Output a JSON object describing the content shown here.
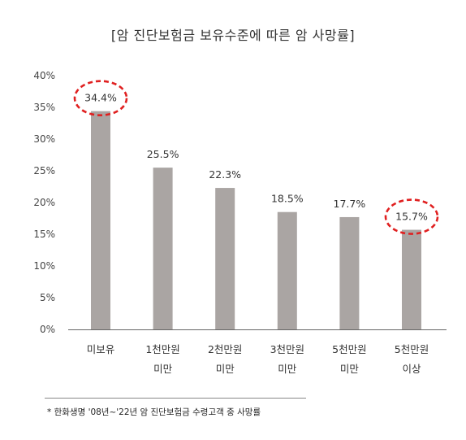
{
  "title": "[암 진단보험금 보유수준에 따른 암 사망률]",
  "footnote": "* 한화생명 '08년~'22년 암 진단보험금 수령고객 중 사망률",
  "colors": {
    "bar": "#aaa5a3",
    "highlight": "#e02020",
    "text": "#333333"
  },
  "chart_data": {
    "type": "bar",
    "categories": [
      [
        "미보유"
      ],
      [
        "1천만원",
        "미만"
      ],
      [
        "2천만원",
        "미만"
      ],
      [
        "3천만원",
        "미만"
      ],
      [
        "5천만원",
        "미만"
      ],
      [
        "5천만원",
        "이상"
      ]
    ],
    "values": [
      34.4,
      25.5,
      22.3,
      18.5,
      17.7,
      15.7
    ],
    "value_labels": [
      "34.4%",
      "25.5%",
      "22.3%",
      "18.5%",
      "17.7%",
      "15.7%"
    ],
    "highlighted": [
      0,
      5
    ],
    "ylim": [
      0,
      40
    ],
    "yticks": [
      "0%",
      "5%",
      "10%",
      "15%",
      "20%",
      "25%",
      "30%",
      "35%",
      "40%"
    ],
    "ytick_values": [
      0,
      5,
      10,
      15,
      20,
      25,
      30,
      35,
      40
    ],
    "grid": false,
    "legend": "none"
  }
}
